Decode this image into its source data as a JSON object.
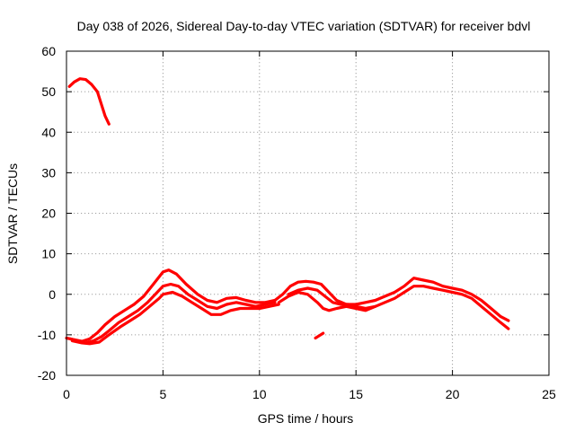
{
  "chart_data": {
    "type": "line",
    "title": "Day 038 of 2026, Sidereal Day-to-day VTEC variation (SDTVAR) for receiver bdvl",
    "xlabel": "GPS time / hours",
    "ylabel": "SDTVAR / TECUs",
    "xlim": [
      0,
      25
    ],
    "ylim": [
      -20,
      60
    ],
    "x_ticks": [
      0,
      5,
      10,
      15,
      20,
      25
    ],
    "y_ticks": [
      -20,
      -10,
      0,
      10,
      20,
      30,
      40,
      50,
      60
    ],
    "x_tick_labels": [
      "0",
      "5",
      "10",
      "15",
      "20",
      "25"
    ],
    "y_tick_labels": [
      "-20",
      "-10",
      "0",
      "10",
      "20",
      "30",
      "40",
      "50",
      "60"
    ],
    "grid": true,
    "legend": "none",
    "color": "#ff0000",
    "series": [
      {
        "name": "track-early-high",
        "x": [
          0.15,
          0.4,
          0.7,
          1.0,
          1.3,
          1.6,
          1.8,
          2.0,
          2.2
        ],
        "y": [
          51.3,
          52.4,
          53.2,
          53.0,
          51.8,
          50.0,
          47.0,
          44.0,
          42.0
        ]
      },
      {
        "name": "track-main-a",
        "x": [
          0,
          0.4,
          0.8,
          1.2,
          1.6,
          2.0,
          2.5,
          3.0,
          3.5,
          4.0,
          4.5,
          5.0,
          5.3,
          5.7,
          6.2,
          6.8,
          7.3,
          7.8,
          8.3,
          8.8,
          9.3,
          9.8,
          10.3,
          10.8
        ],
        "y": [
          -10.8,
          -11.2,
          -11.6,
          -11.0,
          -9.5,
          -7.5,
          -5.5,
          -4.0,
          -2.5,
          -0.5,
          2.5,
          5.5,
          6.0,
          5.0,
          2.5,
          0.0,
          -1.5,
          -2.0,
          -1.0,
          -0.8,
          -1.5,
          -2.0,
          -2.0,
          -1.5
        ]
      },
      {
        "name": "track-main-b",
        "x": [
          0.2,
          0.6,
          1.0,
          1.4,
          1.8,
          2.2,
          2.7,
          3.2,
          3.7,
          4.2,
          4.7,
          5.0,
          5.4,
          5.8,
          6.3,
          6.8,
          7.3,
          7.8,
          8.3,
          8.8,
          9.3,
          9.8,
          10.3,
          10.8
        ],
        "y": [
          -11.0,
          -11.5,
          -12.0,
          -11.5,
          -10.5,
          -9.0,
          -7.0,
          -5.5,
          -4.0,
          -2.0,
          0.5,
          2.0,
          2.5,
          2.0,
          0.0,
          -1.5,
          -3.0,
          -3.5,
          -2.5,
          -2.0,
          -2.5,
          -3.0,
          -2.5,
          -2.0
        ]
      },
      {
        "name": "track-main-c",
        "x": [
          0.3,
          0.8,
          1.2,
          1.7,
          2.2,
          2.8,
          3.3,
          3.8,
          4.3,
          4.8,
          5.0,
          5.5,
          6.0,
          6.5,
          7.0,
          7.5,
          8.0,
          8.5,
          9.0,
          9.5,
          10.0,
          10.5,
          11.0
        ],
        "y": [
          -11.5,
          -12.0,
          -12.2,
          -11.8,
          -10.0,
          -8.0,
          -6.5,
          -5.0,
          -3.0,
          -1.0,
          0.0,
          0.5,
          -0.5,
          -2.0,
          -3.5,
          -5.0,
          -5.0,
          -4.0,
          -3.5,
          -3.5,
          -3.5,
          -3.0,
          -2.5
        ]
      },
      {
        "name": "track-noon-a",
        "x": [
          10.8,
          11.2,
          11.6,
          12.0,
          12.4,
          12.8,
          13.2,
          13.6,
          14.0,
          14.5,
          15.0,
          15.5,
          16.0,
          16.5,
          17.0,
          17.5,
          18.0,
          18.5,
          19.0,
          19.5,
          20.0,
          20.5,
          21.0,
          21.5,
          22.0,
          22.5,
          22.9
        ],
        "y": [
          -1.5,
          0.0,
          2.0,
          3.0,
          3.2,
          3.0,
          2.5,
          0.5,
          -1.5,
          -2.5,
          -2.5,
          -2.0,
          -1.5,
          -0.5,
          0.5,
          2.0,
          4.0,
          3.5,
          3.0,
          2.0,
          1.5,
          1.0,
          0.0,
          -1.5,
          -3.5,
          -5.5,
          -6.5
        ]
      },
      {
        "name": "track-noon-b",
        "x": [
          11.0,
          11.5,
          12.0,
          12.5,
          13.0,
          13.3,
          13.6,
          14.0,
          14.5,
          15.0,
          15.5,
          16.0,
          16.5,
          17.0,
          17.5,
          18.0,
          18.5,
          19.0,
          19.5,
          20.0,
          20.5,
          21.0,
          21.5,
          22.0,
          22.5,
          22.9
        ],
        "y": [
          -2.0,
          -0.5,
          0.5,
          0.0,
          -2.0,
          -3.5,
          -4.0,
          -3.5,
          -3.0,
          -3.5,
          -4.0,
          -3.0,
          -2.0,
          -1.0,
          0.5,
          2.0,
          2.0,
          1.5,
          1.0,
          0.5,
          0.0,
          -1.0,
          -3.0,
          -5.0,
          -7.0,
          -8.5
        ]
      },
      {
        "name": "track-noon-c",
        "x": [
          11.5,
          12.0,
          12.5,
          13.0,
          13.4,
          13.8,
          14.2,
          14.6,
          15.0,
          15.5,
          16.0
        ],
        "y": [
          0.0,
          1.0,
          1.5,
          1.0,
          -0.5,
          -2.0,
          -2.5,
          -2.5,
          -3.0,
          -3.5,
          -3.0
        ]
      },
      {
        "name": "track-short",
        "x": [
          12.9,
          13.1,
          13.3
        ],
        "y": [
          -10.8,
          -10.2,
          -9.6
        ]
      }
    ]
  }
}
